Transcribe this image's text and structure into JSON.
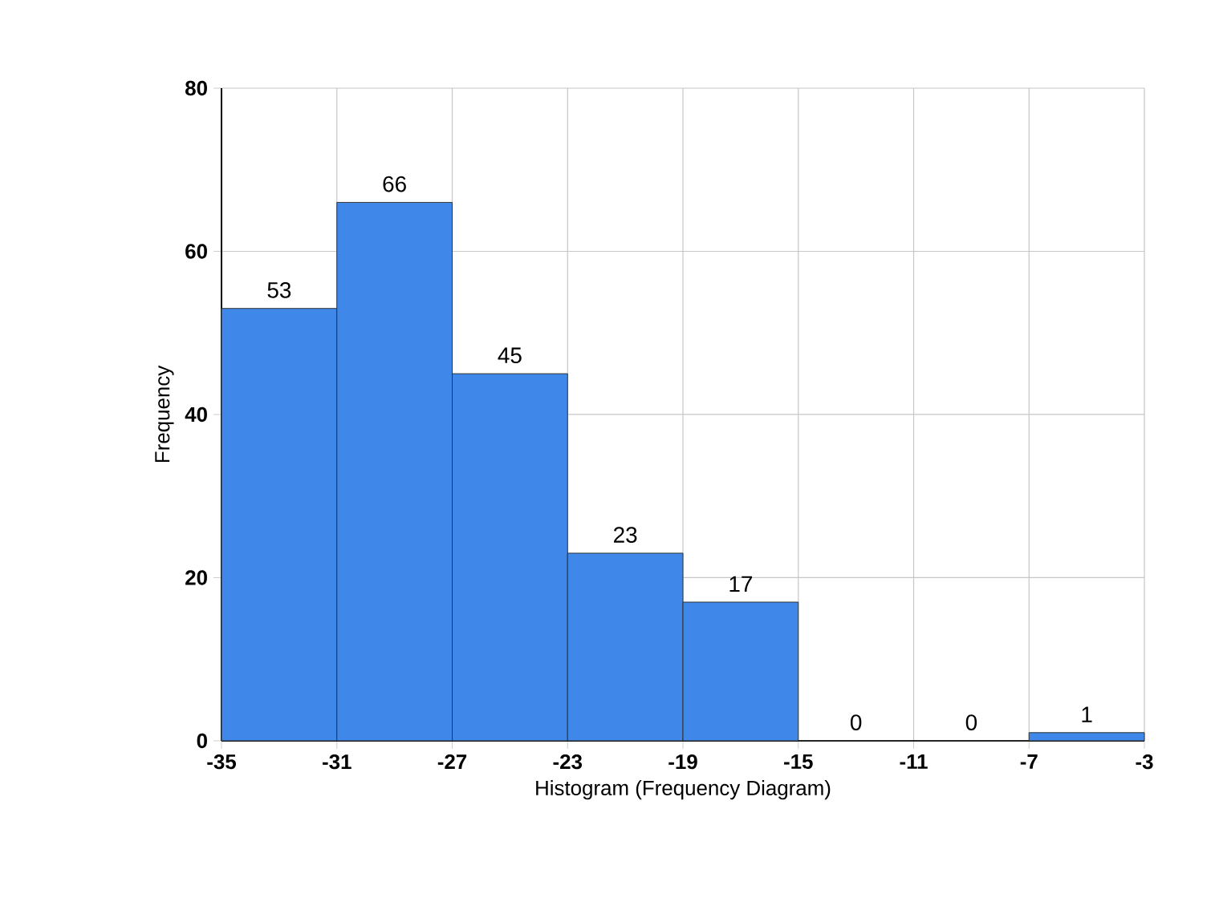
{
  "chart_data": {
    "type": "histogram",
    "xlabel": "Histogram (Frequency Diagram)",
    "ylabel": "Frequency",
    "bins": [
      -35,
      -31,
      -27,
      -23,
      -19,
      -15,
      -11,
      -7,
      -3
    ],
    "values": [
      53,
      66,
      45,
      23,
      17,
      0,
      0,
      1
    ],
    "color": "#3f87e8",
    "data_labels": true,
    "grid": true,
    "xlim": [
      -35,
      -3
    ],
    "xticks": [
      -35,
      -31,
      -27,
      -23,
      -19,
      -15,
      -11,
      -7,
      -3
    ],
    "ylim": [
      0,
      80
    ],
    "yticks": [
      0,
      20,
      40,
      60,
      80
    ]
  }
}
